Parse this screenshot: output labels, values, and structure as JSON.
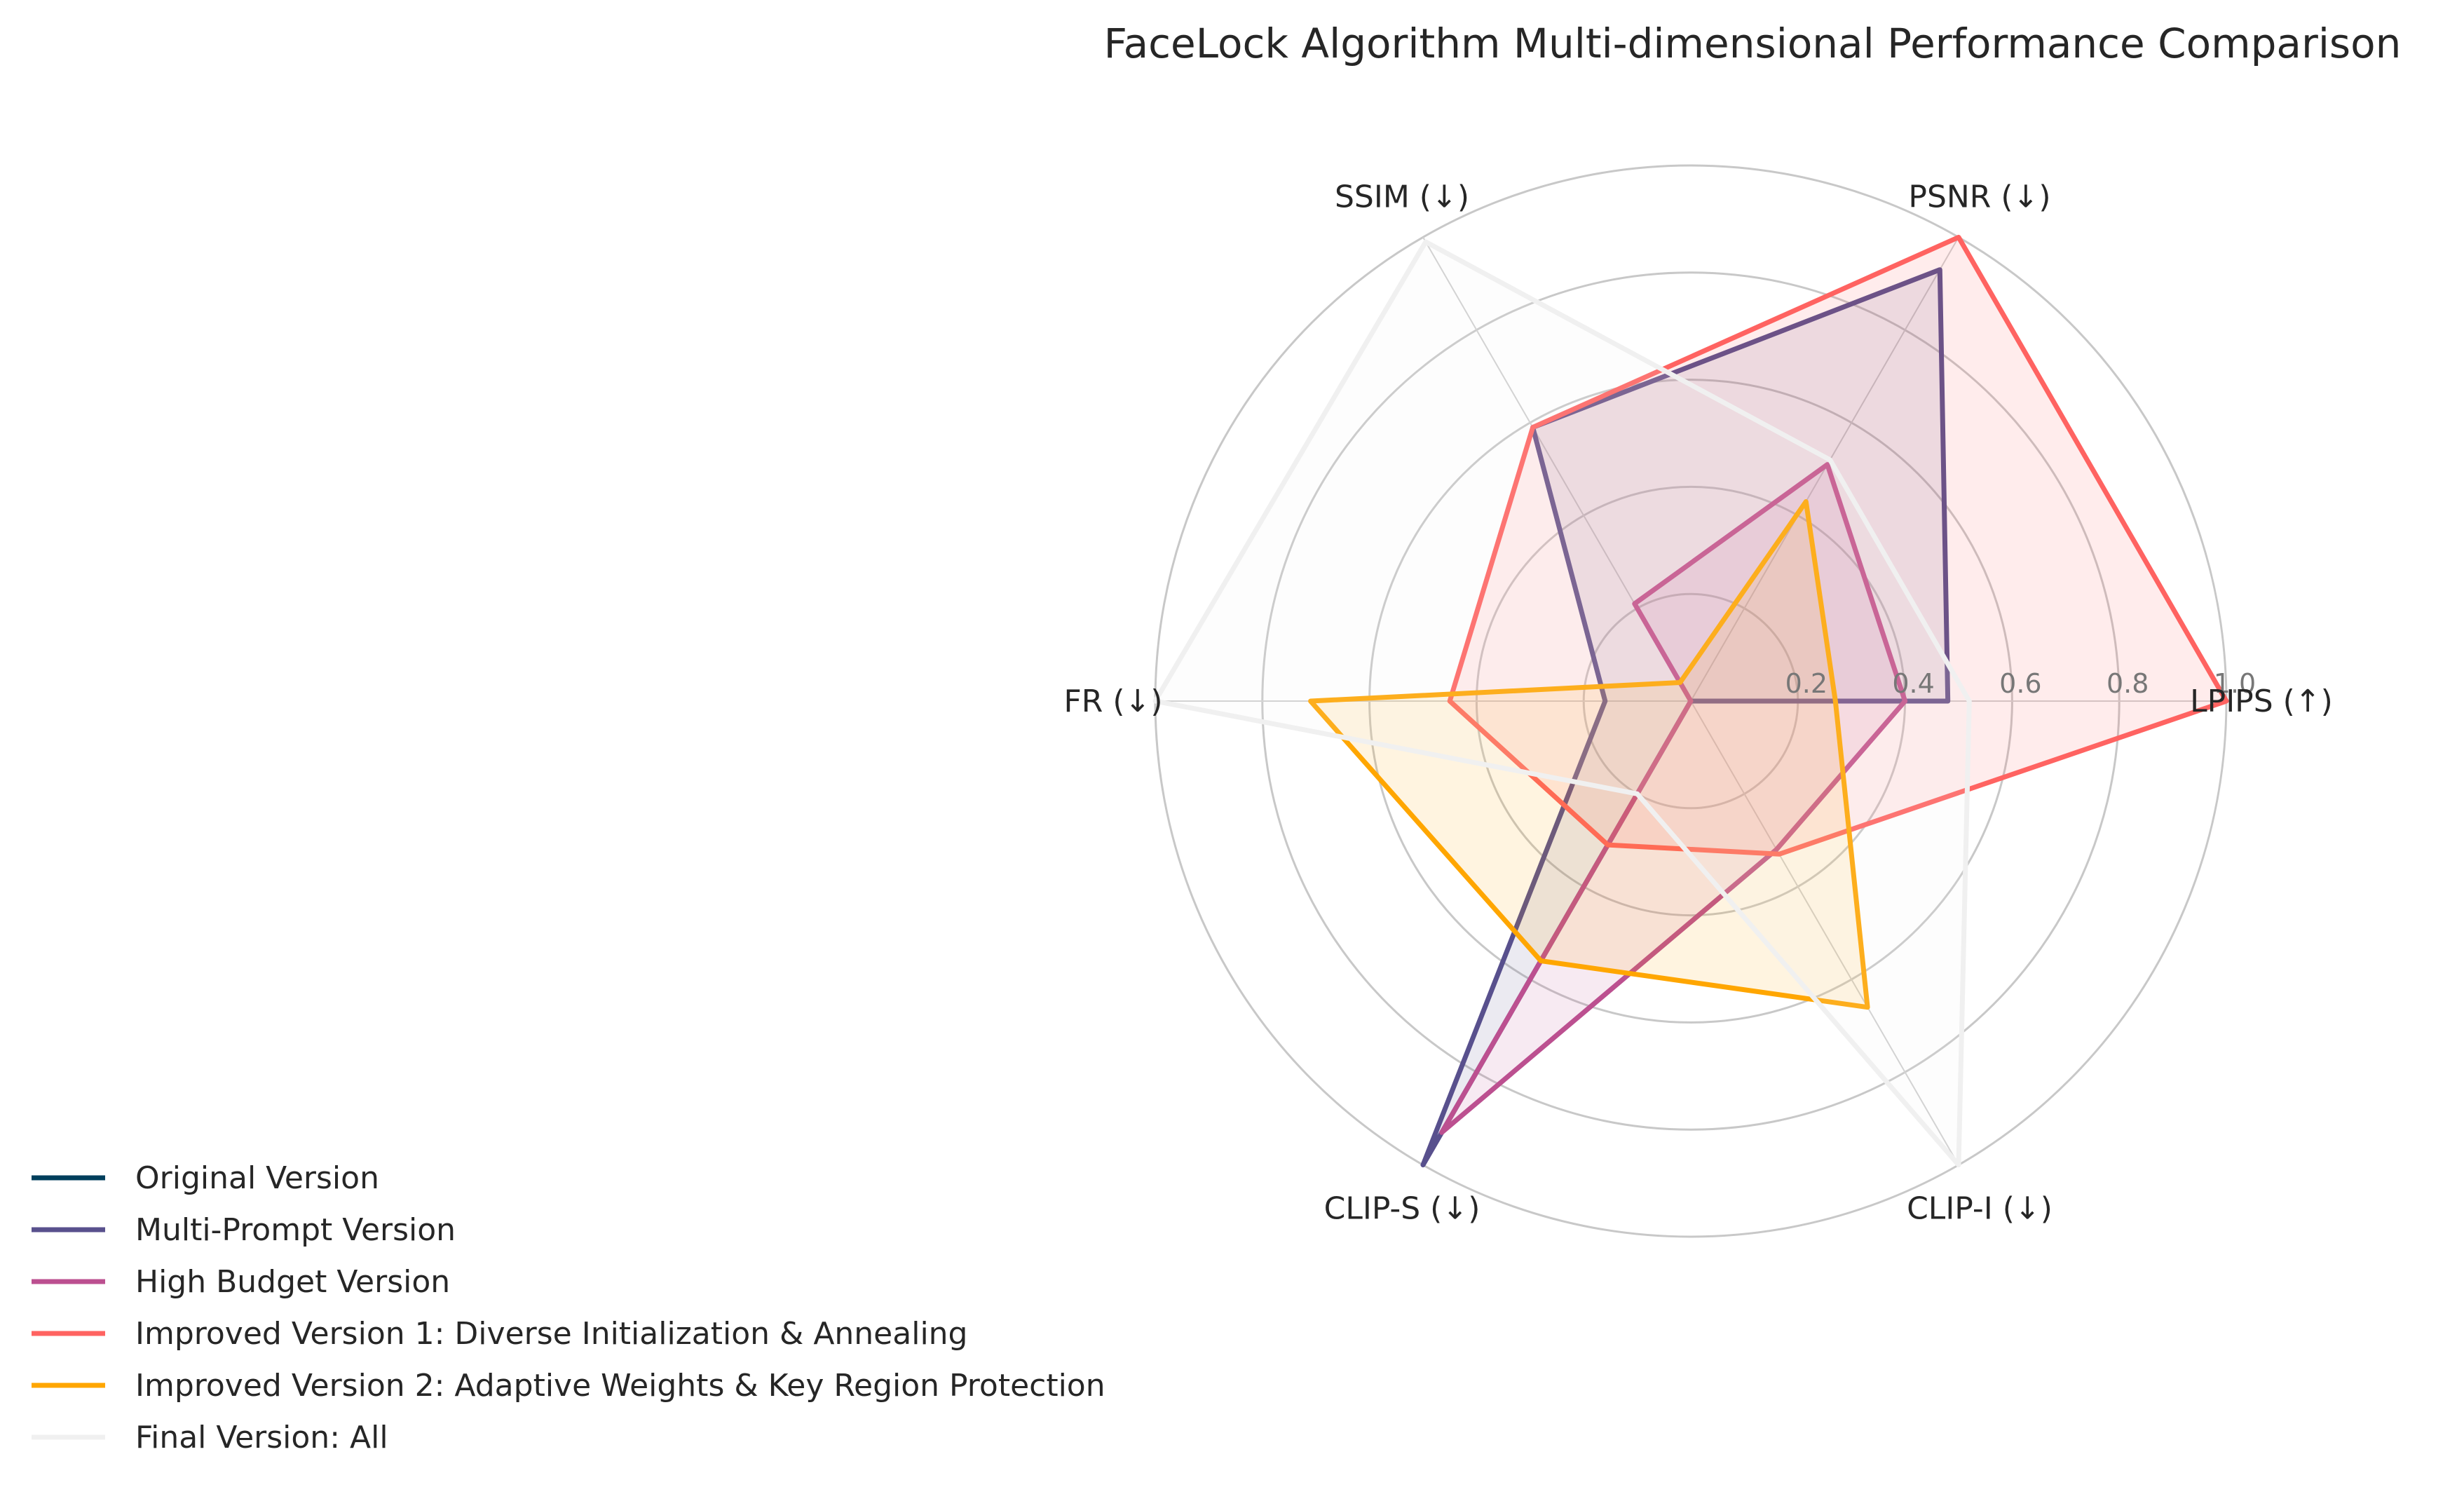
{
  "chart_data": {
    "type": "radar",
    "title": "FaceLock Algorithm Multi-dimensional Performance Comparison",
    "axes": [
      "LPIPS (↑)",
      "PSNR (↓)",
      "SSIM (↓)",
      "FR (↓)",
      "CLIP-S (↓)",
      "CLIP-I (↓)"
    ],
    "rlim": [
      0,
      1
    ],
    "r_ticks": [
      0.2,
      0.4,
      0.6,
      0.8,
      1.0
    ],
    "r_tick_labels": [
      "0.2",
      "0.4",
      "0.6",
      "0.8",
      "1.0"
    ],
    "grid": true,
    "legend_placement": "bottom-left",
    "series": [
      {
        "name": "Original Version",
        "color": "#003f5c",
        "values": [
          0.0,
          0.0,
          0.0,
          0.0,
          0.0,
          0.0
        ],
        "fill": false
      },
      {
        "name": "Multi-Prompt Version",
        "color": "#58508d",
        "values": [
          0.48,
          0.93,
          0.59,
          0.16,
          1.0,
          0.0
        ],
        "fill": true
      },
      {
        "name": "High Budget Version",
        "color": "#bc5090",
        "values": [
          0.4,
          0.51,
          0.21,
          0.0,
          0.93,
          0.32
        ],
        "fill": true
      },
      {
        "name": "Improved Version 1: Diverse Initialization & Annealing",
        "color": "#ff6361",
        "values": [
          1.0,
          1.0,
          0.59,
          0.45,
          0.31,
          0.33
        ],
        "fill": true
      },
      {
        "name": "Improved Version 2: Adaptive Weights & Key Region Protection",
        "color": "#ffa600",
        "values": [
          0.27,
          0.43,
          0.04,
          0.71,
          0.56,
          0.66
        ],
        "fill": true
      },
      {
        "name": "Final Version: All",
        "color": "#f0f0f0",
        "values": [
          0.52,
          0.52,
          0.99,
          1.0,
          0.2,
          1.0
        ],
        "fill": true
      }
    ]
  }
}
